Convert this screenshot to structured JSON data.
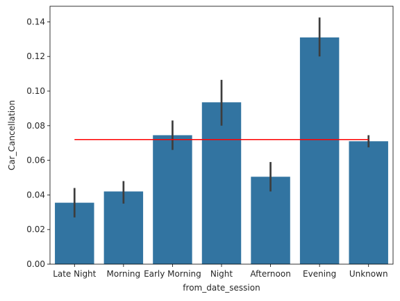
{
  "chart_data": {
    "type": "bar",
    "categories": [
      "Late Night",
      "Morning",
      "Early Morning",
      "Night",
      "Afternoon",
      "Evening",
      "Unknown"
    ],
    "values": [
      0.0355,
      0.042,
      0.0745,
      0.0935,
      0.0505,
      0.131,
      0.071
    ],
    "error_low": [
      0.027,
      0.035,
      0.066,
      0.08,
      0.042,
      0.12,
      0.0675
    ],
    "error_high": [
      0.044,
      0.048,
      0.083,
      0.1065,
      0.059,
      0.1425,
      0.0745
    ],
    "reference_line": {
      "value": 0.072,
      "color": "#ff0000"
    },
    "xlabel": "from_date_session",
    "ylabel": "Car_Cancellation",
    "ylim": [
      0,
      0.149
    ],
    "yticks": [
      0.0,
      0.02,
      0.04,
      0.06,
      0.08,
      0.1,
      0.12,
      0.14
    ],
    "ytick_labels": [
      "0.00",
      "0.02",
      "0.04",
      "0.06",
      "0.08",
      "0.10",
      "0.12",
      "0.14"
    ],
    "bar_color": "#3274a1",
    "error_color": "#3d3d3d",
    "grid": false
  }
}
